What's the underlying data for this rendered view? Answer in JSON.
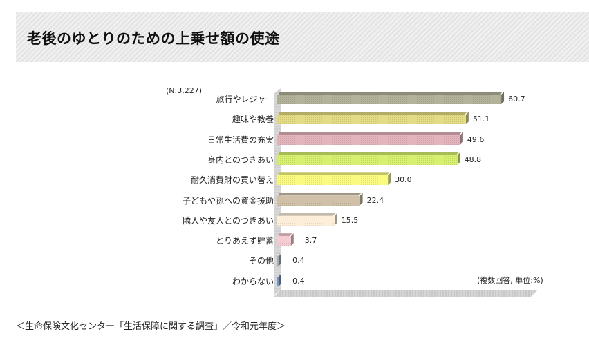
{
  "header": {
    "title": "老後のゆとりのための上乗せ額の使途"
  },
  "source": "＜生命保険文化センター「生活保障に関する調査」／令和元年度＞",
  "chart_data": {
    "type": "bar",
    "orientation": "horizontal",
    "title": "老後のゆとりのための上乗せ額の使途",
    "sample_note": "(N:3,227)",
    "unit_note": "(複数回答, 単位:%)",
    "xlabel": "",
    "ylabel": "",
    "xlim": [
      0,
      70
    ],
    "grid": false,
    "legend": null,
    "categories": [
      "旅行やレジャー",
      "趣味や教養",
      "日常生活費の充実",
      "身内とのつきあい",
      "耐久消費財の買い替え",
      "子どもや孫への資金援助",
      "隣人や友人とのつきあい",
      "とりあえず貯蓄",
      "その他",
      "わからない"
    ],
    "values": [
      60.7,
      51.1,
      49.6,
      48.8,
      30.0,
      22.4,
      15.5,
      3.7,
      0.4,
      0.4
    ],
    "value_labels": [
      "60.7",
      "51.1",
      "49.6",
      "48.8",
      "30.0",
      "22.4",
      "15.5",
      "3.7",
      "0.4",
      "0.4"
    ],
    "colors": [
      "#b3b39a",
      "#e4dc84",
      "#e4b4bc",
      "#d8f070",
      "#fafa80",
      "#d0c0a8",
      "#fceed8",
      "#f6ccd4",
      "#a4b0b4",
      "#7898c4"
    ],
    "source": "生命保険文化センター「生活保障に関する調査」／令和元年度"
  }
}
